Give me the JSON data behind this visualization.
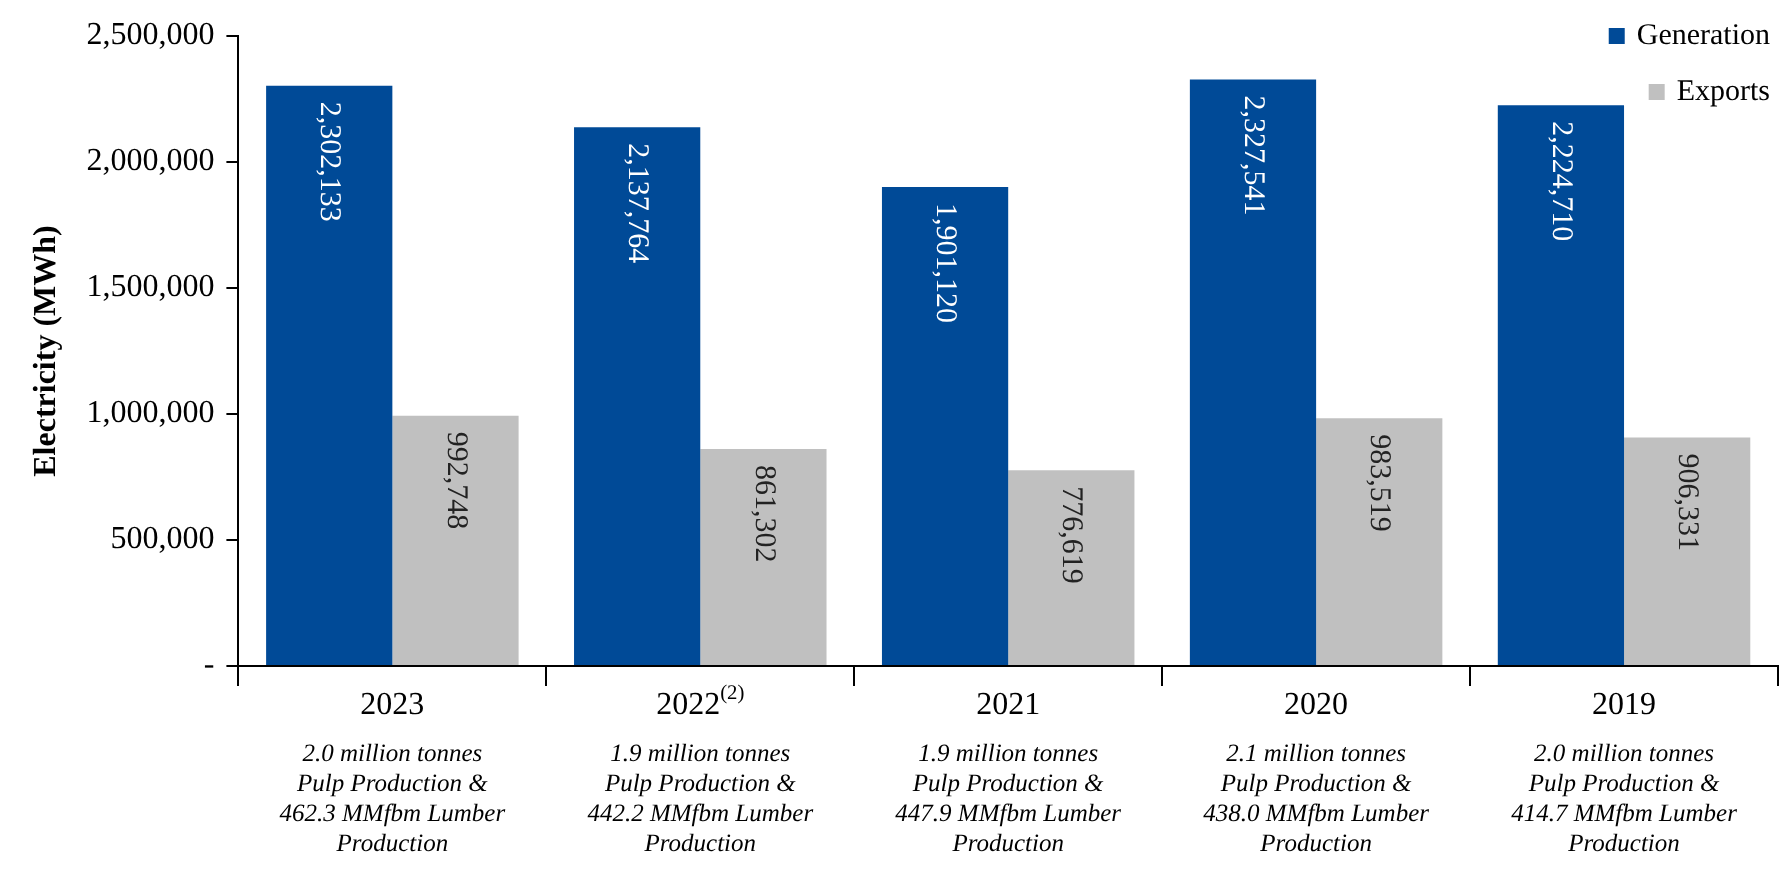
{
  "chart_data": {
    "type": "bar",
    "ylabel": "Electricity (MWh)",
    "categories": [
      "2023",
      "2022$^{(2)}$",
      "2021",
      "2020",
      "2019"
    ],
    "series": [
      {
        "name": "Generation",
        "color": "#004a97",
        "values": [
          2302133,
          2137764,
          1901120,
          2327541,
          2224710
        ],
        "value_labels": [
          "2,302,133",
          "2,137,764",
          "1,901,120",
          "2,327,541",
          "2,224,710"
        ]
      },
      {
        "name": "Exports",
        "color": "#c0c0c0",
        "values": [
          992748,
          861302,
          776619,
          983519,
          906331
        ],
        "value_labels": [
          "992,748",
          "861,302",
          "776,619",
          "983,519",
          "906,331"
        ]
      }
    ],
    "ylim": [
      0,
      2500000
    ],
    "yticks": [
      {
        "value": 0,
        "label": "-"
      },
      {
        "value": 500000,
        "label": "500,000"
      },
      {
        "value": 1000000,
        "label": "1,000,000"
      },
      {
        "value": 1500000,
        "label": "1,500,000"
      },
      {
        "value": 2000000,
        "label": "2,000,000"
      },
      {
        "value": 2500000,
        "label": "2,500,000"
      }
    ],
    "grid": false,
    "legend": "top right",
    "annotations": [
      "2.0 million tonnes\nPulp Production &\n462.3 MMfbm Lumber\nProduction",
      "1.9 million tonnes\nPulp Production &\n442.2 MMfbm Lumber\nProduction",
      "1.9 million tonnes\nPulp Production &\n447.9 MMfbm Lumber\nProduction",
      "2.1 million tonnes\nPulp Production &\n438.0 MMfbm Lumber\nProduction",
      "2.0 million tonnes\nPulp Production &\n414.7 MMfbm Lumber\nProduction"
    ]
  }
}
